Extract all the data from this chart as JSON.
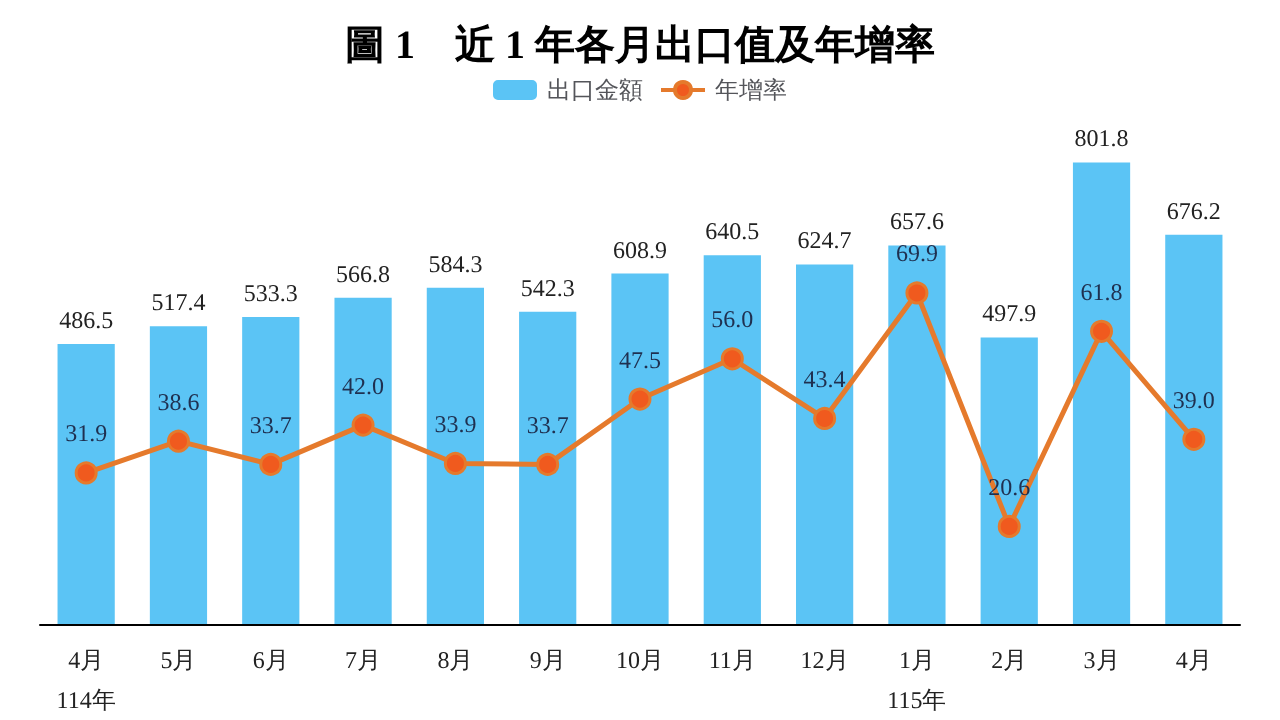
{
  "chart_data": {
    "type": "bar",
    "title": "圖 1　近 1 年各月出口值及年增率",
    "categories": [
      "4月\n114年",
      "5月",
      "6月",
      "7月",
      "8月",
      "9月",
      "10月",
      "11月",
      "12月",
      "1月\n115年",
      "2月",
      "3月",
      "4月"
    ],
    "series": [
      {
        "name": "出口金額",
        "color": "#5bc4f5",
        "values": [
          486.5,
          517.4,
          533.3,
          566.8,
          584.3,
          542.3,
          608.9,
          640.5,
          624.7,
          657.6,
          497.9,
          801.8,
          676.2
        ],
        "value_labels": [
          "486.5",
          "517.4",
          "533.3",
          "566.8",
          "584.3",
          "542.3",
          "608.9",
          "640.5",
          "624.7",
          "657.6",
          "497.9",
          "801.8",
          "676.2"
        ]
      },
      {
        "name": "年增率",
        "type": "line",
        "axis": "y2",
        "color": "#e57a2c",
        "marker": "circle",
        "values": [
          31.9,
          38.6,
          33.7,
          42.0,
          33.9,
          33.7,
          47.5,
          56.0,
          43.4,
          69.9,
          20.6,
          61.8,
          39.0
        ],
        "value_labels": [
          "31.9",
          "38.6",
          "33.7",
          "42.0",
          "33.9",
          "33.7",
          "47.5",
          "56.0",
          "43.4",
          "69.9",
          "20.6",
          "61.8",
          "39.0"
        ]
      }
    ],
    "legend": "top"
  }
}
